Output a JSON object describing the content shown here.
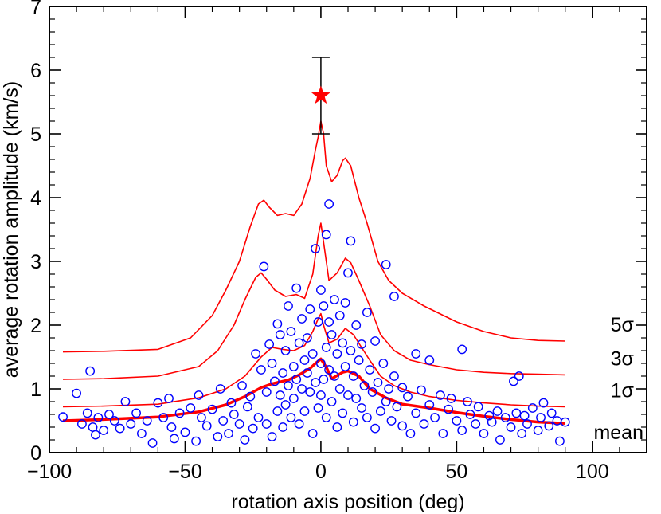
{
  "chart_data": {
    "type": "scatter",
    "title": "",
    "xlabel": "rotation axis position (deg)",
    "ylabel": "average rotation amplitude (km/s)",
    "xlim": [
      -100,
      120
    ],
    "ylim": [
      0,
      7
    ],
    "x_ticks": [
      -100,
      -50,
      0,
      50,
      100
    ],
    "y_ticks": [
      0,
      1,
      2,
      3,
      4,
      5,
      6,
      7
    ],
    "x_tick_labels": [
      "−100",
      "−50",
      "0",
      "50",
      "100"
    ],
    "y_tick_labels": [
      "0",
      "1",
      "2",
      "3",
      "4",
      "5",
      "6",
      "7"
    ],
    "grid": false,
    "star": {
      "x": 0,
      "y": 5.6,
      "err_low": 5.0,
      "err_high": 6.2,
      "color": "#ff0000"
    },
    "scatter": {
      "color": "#0000ff",
      "points": [
        [
          -95,
          0.56
        ],
        [
          -90,
          0.93
        ],
        [
          -88,
          0.45
        ],
        [
          -86,
          0.62
        ],
        [
          -85,
          1.28
        ],
        [
          -84,
          0.4
        ],
        [
          -83,
          0.28
        ],
        [
          -82,
          0.55
        ],
        [
          -80,
          0.35
        ],
        [
          -78,
          0.6
        ],
        [
          -76,
          0.5
        ],
        [
          -74,
          0.38
        ],
        [
          -72,
          0.8
        ],
        [
          -70,
          0.45
        ],
        [
          -68,
          0.62
        ],
        [
          -66,
          0.3
        ],
        [
          -64,
          0.5
        ],
        [
          -62,
          0.15
        ],
        [
          -60,
          0.78
        ],
        [
          -58,
          0.55
        ],
        [
          -56,
          0.85
        ],
        [
          -55,
          0.4
        ],
        [
          -54,
          0.22
        ],
        [
          -52,
          0.62
        ],
        [
          -50,
          0.32
        ],
        [
          -48,
          0.7
        ],
        [
          -46,
          0.18
        ],
        [
          -45,
          0.9
        ],
        [
          -44,
          0.55
        ],
        [
          -42,
          0.42
        ],
        [
          -40,
          0.68
        ],
        [
          -38,
          0.25
        ],
        [
          -37,
          1.0
        ],
        [
          -36,
          0.5
        ],
        [
          -34,
          0.3
        ],
        [
          -33,
          0.78
        ],
        [
          -32,
          0.6
        ],
        [
          -30,
          0.45
        ],
        [
          -29,
          1.05
        ],
        [
          -28,
          0.2
        ],
        [
          -27,
          0.72
        ],
        [
          -26,
          0.88
        ],
        [
          -25,
          0.38
        ],
        [
          -24,
          1.55
        ],
        [
          -23,
          0.55
        ],
        [
          -22,
          1.3
        ],
        [
          -21,
          2.92
        ],
        [
          -20,
          0.95
        ],
        [
          -20,
          0.45
        ],
        [
          -19,
          1.7
        ],
        [
          -18,
          1.4
        ],
        [
          -18,
          0.25
        ],
        [
          -17,
          1.12
        ],
        [
          -16,
          0.65
        ],
        [
          -16,
          2.02
        ],
        [
          -15,
          1.85
        ],
        [
          -15,
          0.9
        ],
        [
          -14,
          1.25
        ],
        [
          -14,
          0.4
        ],
        [
          -13,
          1.6
        ],
        [
          -13,
          0.75
        ],
        [
          -12,
          2.3
        ],
        [
          -12,
          1.05
        ],
        [
          -11,
          0.55
        ],
        [
          -11,
          1.9
        ],
        [
          -10,
          1.35
        ],
        [
          -10,
          0.85
        ],
        [
          -9,
          2.58
        ],
        [
          -9,
          1.15
        ],
        [
          -8,
          0.45
        ],
        [
          -8,
          1.72
        ],
        [
          -7,
          1.0
        ],
        [
          -7,
          2.1
        ],
        [
          -6,
          1.45
        ],
        [
          -6,
          0.65
        ],
        [
          -5,
          1.8
        ],
        [
          -5,
          1.25
        ],
        [
          -4,
          2.25
        ],
        [
          -4,
          0.95
        ],
        [
          -3,
          1.55
        ],
        [
          -3,
          0.3
        ],
        [
          -2,
          3.2
        ],
        [
          -2,
          1.1
        ],
        [
          -1,
          2.05
        ],
        [
          -1,
          0.7
        ],
        [
          0,
          2.55
        ],
        [
          0,
          1.4
        ],
        [
          0,
          0.9
        ],
        [
          1,
          2.3
        ],
        [
          1,
          1.15
        ],
        [
          2,
          3.42
        ],
        [
          2,
          1.65
        ],
        [
          2,
          0.55
        ],
        [
          3,
          3.9
        ],
        [
          3,
          2.05
        ],
        [
          3,
          1.3
        ],
        [
          4,
          1.85
        ],
        [
          4,
          0.8
        ],
        [
          5,
          2.4
        ],
        [
          5,
          1.2
        ],
        [
          6,
          1.55
        ],
        [
          6,
          0.4
        ],
        [
          7,
          2.15
        ],
        [
          7,
          1.0
        ],
        [
          8,
          1.72
        ],
        [
          8,
          0.62
        ],
        [
          9,
          2.35
        ],
        [
          9,
          1.35
        ],
        [
          10,
          2.82
        ],
        [
          10,
          0.9
        ],
        [
          11,
          3.32
        ],
        [
          11,
          1.6
        ],
        [
          12,
          1.2
        ],
        [
          12,
          0.48
        ],
        [
          13,
          2.0
        ],
        [
          13,
          0.85
        ],
        [
          14,
          1.45
        ],
        [
          15,
          1.7
        ],
        [
          15,
          0.7
        ],
        [
          16,
          1.05
        ],
        [
          17,
          2.2
        ],
        [
          17,
          0.55
        ],
        [
          18,
          1.3
        ],
        [
          19,
          0.95
        ],
        [
          20,
          1.75
        ],
        [
          20,
          0.38
        ],
        [
          21,
          1.1
        ],
        [
          22,
          0.65
        ],
        [
          23,
          1.4
        ],
        [
          24,
          2.95
        ],
        [
          24,
          0.8
        ],
        [
          25,
          1.0
        ],
        [
          26,
          0.5
        ],
        [
          27,
          2.45
        ],
        [
          27,
          1.2
        ],
        [
          28,
          0.72
        ],
        [
          30,
          1.02
        ],
        [
          30,
          0.42
        ],
        [
          32,
          0.88
        ],
        [
          33,
          0.3
        ],
        [
          35,
          1.55
        ],
        [
          35,
          0.62
        ],
        [
          37,
          0.98
        ],
        [
          38,
          0.45
        ],
        [
          40,
          1.45
        ],
        [
          40,
          0.75
        ],
        [
          42,
          0.55
        ],
        [
          44,
          0.9
        ],
        [
          45,
          0.3
        ],
        [
          47,
          0.68
        ],
        [
          48,
          0.85
        ],
        [
          50,
          0.5
        ],
        [
          52,
          1.62
        ],
        [
          52,
          0.35
        ],
        [
          54,
          0.8
        ],
        [
          55,
          0.6
        ],
        [
          57,
          0.45
        ],
        [
          58,
          0.72
        ],
        [
          60,
          0.3
        ],
        [
          62,
          0.58
        ],
        [
          63,
          0.48
        ],
        [
          65,
          0.65
        ],
        [
          66,
          0.2
        ],
        [
          68,
          0.55
        ],
        [
          70,
          0.4
        ],
        [
          71,
          1.12
        ],
        [
          72,
          0.62
        ],
        [
          73,
          1.2
        ],
        [
          74,
          0.3
        ],
        [
          75,
          0.58
        ],
        [
          76,
          0.45
        ],
        [
          78,
          0.7
        ],
        [
          80,
          0.35
        ],
        [
          81,
          0.55
        ],
        [
          82,
          0.78
        ],
        [
          84,
          0.42
        ],
        [
          85,
          0.62
        ],
        [
          87,
          0.5
        ],
        [
          88,
          0.18
        ],
        [
          90,
          0.48
        ]
      ]
    },
    "series": [
      {
        "name": "mean",
        "color": "#ff0000",
        "width": 3.5,
        "label": "mean",
        "x": [
          -95,
          -80,
          -60,
          -45,
          -35,
          -28,
          -22,
          -18,
          -12,
          -8,
          -4,
          -2,
          0,
          2,
          4,
          8,
          10,
          14,
          18,
          24,
          30,
          40,
          50,
          60,
          70,
          80,
          90
        ],
        "y": [
          0.5,
          0.52,
          0.56,
          0.64,
          0.75,
          0.88,
          1.02,
          1.08,
          1.14,
          1.22,
          1.32,
          1.4,
          1.47,
          1.34,
          1.16,
          1.26,
          1.28,
          1.2,
          1.0,
          0.86,
          0.76,
          0.7,
          0.63,
          0.57,
          0.52,
          0.48,
          0.46
        ]
      },
      {
        "name": "1σ",
        "color": "#ff0000",
        "width": 1.6,
        "label": "1σ",
        "x": [
          -95,
          -80,
          -60,
          -45,
          -35,
          -28,
          -22,
          -18,
          -14,
          -10,
          -6,
          -3,
          -1,
          0,
          1,
          3,
          6,
          9,
          12,
          15,
          18,
          22,
          27,
          33,
          40,
          50,
          60,
          70,
          80,
          90
        ],
        "y": [
          0.72,
          0.73,
          0.76,
          0.86,
          1.0,
          1.2,
          1.5,
          1.65,
          1.62,
          1.6,
          1.68,
          1.9,
          2.1,
          2.18,
          2.0,
          1.72,
          1.78,
          1.95,
          1.85,
          1.65,
          1.45,
          1.2,
          1.05,
          0.95,
          0.88,
          0.82,
          0.78,
          0.75,
          0.73,
          0.72
        ]
      },
      {
        "name": "3σ",
        "color": "#ff0000",
        "width": 1.6,
        "label": "3σ",
        "x": [
          -95,
          -80,
          -60,
          -45,
          -38,
          -32,
          -28,
          -24,
          -22,
          -20,
          -17,
          -13,
          -9,
          -6,
          -3,
          -1,
          0,
          1,
          3,
          6,
          9,
          11,
          14,
          18,
          22,
          27,
          33,
          40,
          50,
          60,
          70,
          80,
          90
        ],
        "y": [
          1.15,
          1.16,
          1.2,
          1.35,
          1.6,
          2.0,
          2.4,
          2.75,
          2.82,
          2.72,
          2.55,
          2.45,
          2.48,
          2.42,
          2.8,
          3.4,
          3.6,
          3.3,
          2.7,
          2.82,
          3.05,
          2.98,
          2.7,
          2.3,
          1.85,
          1.6,
          1.45,
          1.38,
          1.3,
          1.26,
          1.24,
          1.23,
          1.22
        ]
      },
      {
        "name": "5σ",
        "color": "#ff0000",
        "width": 1.6,
        "label": "5σ",
        "x": [
          -95,
          -80,
          -60,
          -48,
          -40,
          -35,
          -30,
          -26,
          -23,
          -21,
          -19,
          -16,
          -13,
          -10,
          -7,
          -4,
          -2,
          -1,
          0,
          1,
          2,
          4,
          6,
          8,
          9,
          11,
          14,
          17,
          21,
          25,
          30,
          38,
          50,
          60,
          70,
          80,
          90
        ],
        "y": [
          1.58,
          1.59,
          1.62,
          1.8,
          2.15,
          2.55,
          3.0,
          3.55,
          3.9,
          3.96,
          3.85,
          3.72,
          3.75,
          3.72,
          3.9,
          4.3,
          4.75,
          4.95,
          5.2,
          5.0,
          4.5,
          4.25,
          4.35,
          4.58,
          4.62,
          4.5,
          4.0,
          3.6,
          3.0,
          2.7,
          2.5,
          2.3,
          2.05,
          1.9,
          1.8,
          1.76,
          1.75
        ]
      }
    ]
  }
}
